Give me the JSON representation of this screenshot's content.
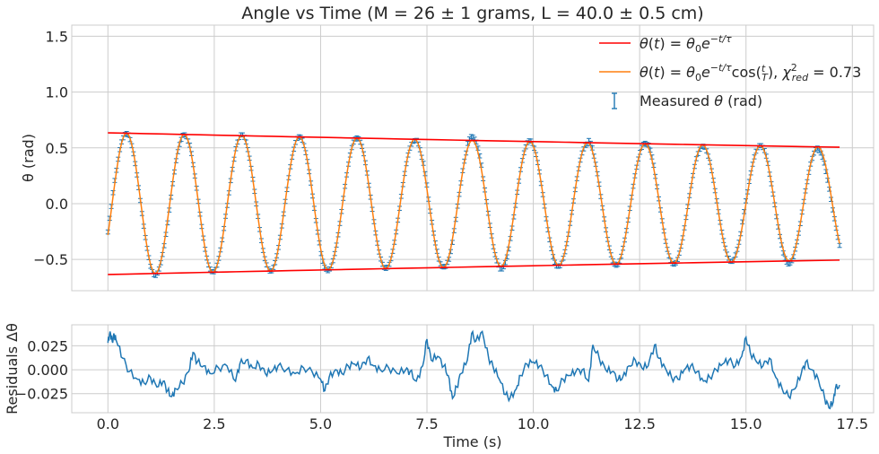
{
  "chart_data": [
    {
      "type": "line",
      "title": "Angle vs Time (M = 26 ± 1 grams, L = 40.0 ± 0.5 cm)",
      "ylabel": "θ (rad)",
      "xlim": [
        -0.85,
        18.0
      ],
      "ylim": [
        -0.78,
        1.6
      ],
      "yticks": [
        "−0.5",
        "0.0",
        "0.5",
        "1.0",
        "1.5"
      ],
      "grid": true,
      "legend_position": "top-right",
      "legend": [
        {
          "label": "θ(t) = θ₀e^(−t/τ)",
          "color": "#ff0000"
        },
        {
          "label": "θ(t) = θ₀e^(−t/τ)cos(t/T),  χ²_red = 0.73",
          "color": "#ff7f0e"
        },
        {
          "label": "Measured θ (rad)",
          "color": "#1f77b4"
        }
      ],
      "envelope": {
        "theta0": 0.635,
        "tau": 75.5,
        "x_start": 0.0,
        "x_end": 17.2
      },
      "fit": {
        "theta0": 0.635,
        "tau": 75.5,
        "period": 1.3545,
        "phase": -2.03,
        "x_start": 0.0,
        "x_end": 17.2
      },
      "measured": {
        "x_start": 0.0,
        "x_end": 17.2,
        "n_points": 430,
        "error": 0.018
      },
      "series_colors": {
        "envelope": "#ff0000",
        "fit": "#ff7f0e",
        "measured": "#1f77b4"
      }
    },
    {
      "type": "line",
      "xlabel": "Time (s)",
      "ylabel": "Residuals Δθ",
      "xlim": [
        -0.85,
        18.0
      ],
      "ylim": [
        -0.045,
        0.047
      ],
      "xticks": [
        "0.0",
        "2.5",
        "5.0",
        "7.5",
        "10.0",
        "12.5",
        "15.0",
        "17.5"
      ],
      "yticks": [
        "−0.025",
        "0.000",
        "0.025"
      ],
      "grid": true,
      "series_color": "#1f77b4",
      "residual_points": [
        [
          0.0,
          0.028
        ],
        [
          0.05,
          0.04
        ],
        [
          0.1,
          0.03
        ],
        [
          0.15,
          0.036
        ],
        [
          0.2,
          0.03
        ],
        [
          0.35,
          0.012
        ],
        [
          0.5,
          -0.002
        ],
        [
          0.7,
          -0.01
        ],
        [
          0.85,
          -0.014
        ],
        [
          1.0,
          -0.008
        ],
        [
          1.15,
          -0.018
        ],
        [
          1.3,
          -0.012
        ],
        [
          1.4,
          -0.022
        ],
        [
          1.5,
          -0.028
        ],
        [
          1.6,
          -0.02
        ],
        [
          1.75,
          -0.014
        ],
        [
          1.9,
          -0.002
        ],
        [
          2.0,
          0.018
        ],
        [
          2.1,
          0.008
        ],
        [
          2.25,
          0.004
        ],
        [
          2.4,
          -0.004
        ],
        [
          2.6,
          0.002
        ],
        [
          2.8,
          0.004
        ],
        [
          3.0,
          -0.012
        ],
        [
          3.1,
          0.006
        ],
        [
          3.25,
          0.01
        ],
        [
          3.4,
          0.002
        ],
        [
          3.55,
          0.006
        ],
        [
          3.7,
          -0.004
        ],
        [
          3.85,
          -0.002
        ],
        [
          4.0,
          0.004
        ],
        [
          4.2,
          0.0
        ],
        [
          4.4,
          -0.004
        ],
        [
          4.6,
          0.002
        ],
        [
          4.8,
          -0.002
        ],
        [
          5.0,
          -0.01
        ],
        [
          5.1,
          -0.022
        ],
        [
          5.2,
          -0.008
        ],
        [
          5.35,
          0.0
        ],
        [
          5.5,
          -0.004
        ],
        [
          5.65,
          0.004
        ],
        [
          5.8,
          0.006
        ],
        [
          5.95,
          0.002
        ],
        [
          6.1,
          0.012
        ],
        [
          6.25,
          0.004
        ],
        [
          6.4,
          0.0
        ],
        [
          6.6,
          0.002
        ],
        [
          6.8,
          -0.004
        ],
        [
          7.0,
          0.0
        ],
        [
          7.1,
          -0.002
        ],
        [
          7.25,
          -0.012
        ],
        [
          7.4,
          0.004
        ],
        [
          7.5,
          0.032
        ],
        [
          7.6,
          0.01
        ],
        [
          7.75,
          0.014
        ],
        [
          7.9,
          0.004
        ],
        [
          8.0,
          -0.006
        ],
        [
          8.1,
          -0.03
        ],
        [
          8.2,
          -0.018
        ],
        [
          8.3,
          -0.004
        ],
        [
          8.45,
          0.01
        ],
        [
          8.55,
          0.038
        ],
        [
          8.65,
          0.03
        ],
        [
          8.8,
          0.04
        ],
        [
          8.95,
          0.012
        ],
        [
          9.05,
          0.004
        ],
        [
          9.2,
          -0.01
        ],
        [
          9.35,
          -0.026
        ],
        [
          9.45,
          -0.03
        ],
        [
          9.6,
          -0.02
        ],
        [
          9.7,
          -0.006
        ],
        [
          9.85,
          0.006
        ],
        [
          10.0,
          0.008
        ],
        [
          10.15,
          0.004
        ],
        [
          10.3,
          -0.006
        ],
        [
          10.45,
          -0.018
        ],
        [
          10.55,
          -0.022
        ],
        [
          10.7,
          -0.01
        ],
        [
          10.85,
          -0.006
        ],
        [
          11.0,
          -0.002
        ],
        [
          11.15,
          0.0
        ],
        [
          11.3,
          -0.012
        ],
        [
          11.4,
          0.026
        ],
        [
          11.55,
          0.012
        ],
        [
          11.7,
          0.0
        ],
        [
          11.85,
          -0.002
        ],
        [
          12.0,
          -0.01
        ],
        [
          12.1,
          -0.008
        ],
        [
          12.25,
          0.004
        ],
        [
          12.4,
          0.01
        ],
        [
          12.55,
          0.002
        ],
        [
          12.7,
          0.004
        ],
        [
          12.85,
          0.026
        ],
        [
          12.95,
          0.012
        ],
        [
          13.1,
          0.002
        ],
        [
          13.25,
          -0.008
        ],
        [
          13.4,
          -0.01
        ],
        [
          13.55,
          0.0
        ],
        [
          13.7,
          0.004
        ],
        [
          13.85,
          -0.002
        ],
        [
          14.0,
          -0.012
        ],
        [
          14.15,
          -0.008
        ],
        [
          14.3,
          0.0
        ],
        [
          14.45,
          0.006
        ],
        [
          14.6,
          0.01
        ],
        [
          14.75,
          0.004
        ],
        [
          14.9,
          0.014
        ],
        [
          15.0,
          0.034
        ],
        [
          15.1,
          0.018
        ],
        [
          15.25,
          0.008
        ],
        [
          15.4,
          0.004
        ],
        [
          15.55,
          0.012
        ],
        [
          15.7,
          -0.008
        ],
        [
          15.85,
          -0.02
        ],
        [
          16.0,
          -0.028
        ],
        [
          16.15,
          -0.02
        ],
        [
          16.3,
          -0.004
        ],
        [
          16.4,
          0.008
        ],
        [
          16.55,
          0.0
        ],
        [
          16.7,
          -0.01
        ],
        [
          16.85,
          -0.03
        ],
        [
          16.95,
          -0.04
        ],
        [
          17.05,
          -0.034
        ],
        [
          17.1,
          -0.02
        ],
        [
          17.2,
          -0.016
        ]
      ]
    }
  ]
}
